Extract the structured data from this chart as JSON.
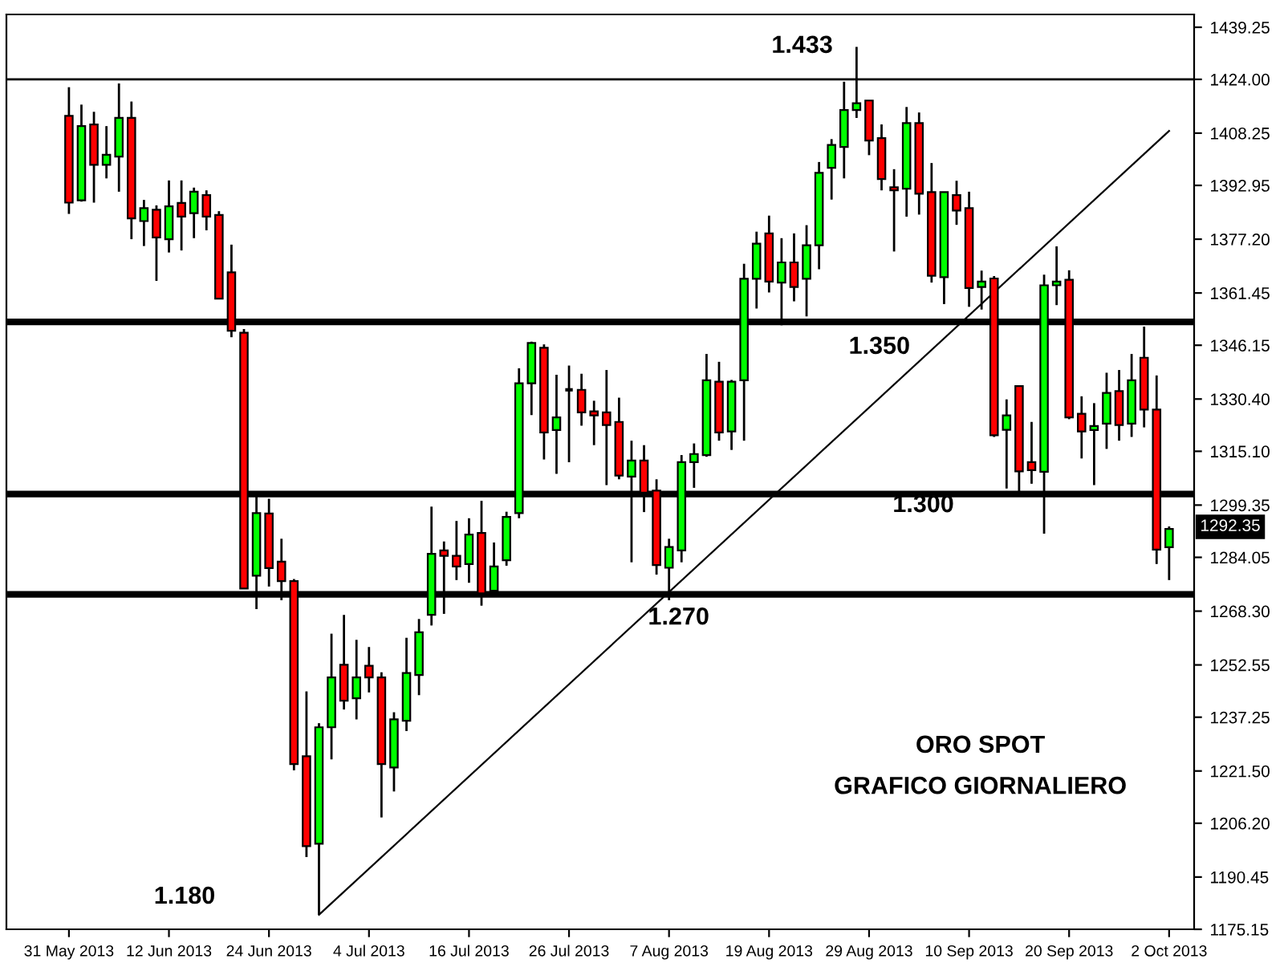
{
  "chart_data": {
    "type": "candlestick",
    "categories": [
      "31 May 2013",
      null,
      null,
      null,
      null,
      null,
      null,
      null,
      "12 Jun 2013",
      null,
      null,
      null,
      null,
      null,
      null,
      null,
      "24 Jun 2013",
      null,
      null,
      null,
      null,
      null,
      null,
      null,
      "4 Jul 2013",
      null,
      null,
      null,
      null,
      null,
      null,
      null,
      "16 Jul 2013",
      null,
      null,
      null,
      null,
      null,
      null,
      null,
      "26 Jul 2013",
      null,
      null,
      null,
      null,
      null,
      null,
      null,
      "7 Aug 2013",
      null,
      null,
      null,
      null,
      null,
      null,
      null,
      "19 Aug 2013",
      null,
      null,
      null,
      null,
      null,
      null,
      null,
      "29 Aug 2013",
      null,
      null,
      null,
      null,
      null,
      null,
      null,
      "10 Sep 2013",
      null,
      null,
      null,
      null,
      null,
      null,
      null,
      "20 Sep 2013",
      null,
      null,
      null,
      null,
      null,
      null,
      null,
      "2 Oct 2013"
    ],
    "ohlc": [
      [
        1413.3,
        1421.7,
        1384.6,
        1387.9
      ],
      [
        1388.6,
        1416.6,
        1388.2,
        1410.3
      ],
      [
        1410.8,
        1414.5,
        1387.9,
        1399.0
      ],
      [
        1399.0,
        1410.3,
        1395.0,
        1401.9
      ],
      [
        1401.4,
        1422.8,
        1391.1,
        1412.7
      ],
      [
        1412.7,
        1417.5,
        1377.2,
        1383.3
      ],
      [
        1382.5,
        1388.7,
        1375.2,
        1386.3
      ],
      [
        1385.8,
        1387.1,
        1365.0,
        1377.7
      ],
      [
        1377.2,
        1394.4,
        1373.3,
        1386.8
      ],
      [
        1387.8,
        1394.4,
        1373.9,
        1383.8
      ],
      [
        1384.8,
        1392.3,
        1377.5,
        1391.1
      ],
      [
        1390.1,
        1391.5,
        1379.8,
        1383.8
      ],
      [
        1384.3,
        1385.4,
        1359.8,
        1359.8
      ],
      [
        1367.5,
        1375.6,
        1348.5,
        1350.4
      ],
      [
        1349.8,
        1350.9,
        1274.9,
        1274.9
      ],
      [
        1278.7,
        1301.9,
        1268.9,
        1297.0
      ],
      [
        1296.9,
        1301.2,
        1275.5,
        1280.9
      ],
      [
        1282.8,
        1289.5,
        1271.5,
        1277.1
      ],
      [
        1277.1,
        1277.7,
        1221.7,
        1223.5
      ],
      [
        1225.8,
        1244.8,
        1196.3,
        1199.5
      ],
      [
        1200.2,
        1235.5,
        1179.4,
        1234.3
      ],
      [
        1234.3,
        1261.7,
        1224.9,
        1248.9
      ],
      [
        1252.6,
        1267.2,
        1239.5,
        1242.1
      ],
      [
        1242.8,
        1259.9,
        1236.6,
        1248.9
      ],
      [
        1252.3,
        1257.8,
        1244.5,
        1248.9
      ],
      [
        1248.9,
        1250.4,
        1207.9,
        1223.5
      ],
      [
        1222.5,
        1238.7,
        1215.5,
        1236.6
      ],
      [
        1236.2,
        1260.5,
        1233.2,
        1250.2
      ],
      [
        1249.6,
        1266.0,
        1243.7,
        1262.1
      ],
      [
        1267.2,
        1298.9,
        1264.1,
        1285.1
      ],
      [
        1286.1,
        1288.7,
        1267.5,
        1284.5
      ],
      [
        1284.5,
        1294.7,
        1277.4,
        1281.4
      ],
      [
        1282.1,
        1295.5,
        1276.6,
        1290.7
      ],
      [
        1291.2,
        1300.6,
        1269.9,
        1273.5
      ],
      [
        1274.3,
        1288.4,
        1272.7,
        1281.4
      ],
      [
        1283.2,
        1297.4,
        1281.6,
        1295.9
      ],
      [
        1297.0,
        1339.4,
        1295.5,
        1335.0
      ],
      [
        1335.0,
        1347.2,
        1325.7,
        1346.8
      ],
      [
        1345.4,
        1346.4,
        1312.7,
        1320.6
      ],
      [
        1321.3,
        1337.5,
        1308.5,
        1325.0
      ],
      [
        1333.1,
        1340.2,
        1311.9,
        1333.1
      ],
      [
        1333.1,
        1337.8,
        1322.6,
        1326.5
      ],
      [
        1326.8,
        1329.9,
        1316.9,
        1325.6
      ],
      [
        1326.5,
        1338.9,
        1305.2,
        1322.8
      ],
      [
        1323.7,
        1330.8,
        1306.9,
        1308.0
      ],
      [
        1307.7,
        1318.2,
        1282.6,
        1312.4
      ],
      [
        1312.4,
        1316.9,
        1297.3,
        1303.0
      ],
      [
        1303.6,
        1306.9,
        1279.0,
        1281.8
      ],
      [
        1281.0,
        1289.5,
        1271.5,
        1287.1
      ],
      [
        1286.1,
        1314.0,
        1282.6,
        1311.9
      ],
      [
        1311.9,
        1317.4,
        1304.4,
        1314.3
      ],
      [
        1314.0,
        1343.6,
        1313.5,
        1335.9
      ],
      [
        1335.5,
        1341.3,
        1318.2,
        1320.6
      ],
      [
        1320.9,
        1336.0,
        1315.5,
        1335.5
      ],
      [
        1335.9,
        1370.0,
        1318.2,
        1365.6
      ],
      [
        1365.6,
        1379.4,
        1356.9,
        1375.9
      ],
      [
        1378.9,
        1384.1,
        1361.6,
        1364.8
      ],
      [
        1364.5,
        1377.5,
        1352.0,
        1370.4
      ],
      [
        1370.4,
        1378.9,
        1359.0,
        1363.2
      ],
      [
        1365.6,
        1381.3,
        1354.6,
        1375.4
      ],
      [
        1375.4,
        1399.8,
        1368.4,
        1396.6
      ],
      [
        1398.1,
        1406.5,
        1388.8,
        1404.8
      ],
      [
        1404.2,
        1423.3,
        1395.0,
        1415.0
      ],
      [
        1415.0,
        1433.5,
        1412.7,
        1417.0
      ],
      [
        1417.8,
        1417.8,
        1401.8,
        1406.1
      ],
      [
        1406.8,
        1410.8,
        1391.5,
        1394.8
      ],
      [
        1392.4,
        1397.7,
        1373.6,
        1391.5
      ],
      [
        1392.0,
        1415.9,
        1383.8,
        1411.2
      ],
      [
        1411.2,
        1414.3,
        1384.4,
        1390.5
      ],
      [
        1391.0,
        1399.5,
        1364.5,
        1366.5
      ],
      [
        1366.1,
        1391.0,
        1358.2,
        1391.0
      ],
      [
        1390.1,
        1394.3,
        1381.4,
        1385.6
      ],
      [
        1386.3,
        1391.1,
        1357.4,
        1362.9
      ],
      [
        1363.2,
        1368.0,
        1356.6,
        1364.8
      ],
      [
        1365.7,
        1366.4,
        1319.3,
        1319.8
      ],
      [
        1321.4,
        1330.3,
        1304.2,
        1325.6
      ],
      [
        1334.2,
        1334.2,
        1302.8,
        1309.2
      ],
      [
        1311.9,
        1323.7,
        1305.6,
        1309.6
      ],
      [
        1309.1,
        1366.8,
        1291.0,
        1363.7
      ],
      [
        1363.7,
        1375.1,
        1357.9,
        1364.8
      ],
      [
        1365.3,
        1368.1,
        1324.5,
        1325.0
      ],
      [
        1326.1,
        1331.2,
        1313.0,
        1320.9
      ],
      [
        1321.3,
        1329.2,
        1305.2,
        1322.5
      ],
      [
        1323.2,
        1338.1,
        1315.8,
        1332.2
      ],
      [
        1332.7,
        1338.9,
        1318.2,
        1322.8
      ],
      [
        1323.2,
        1343.6,
        1319.3,
        1335.9
      ],
      [
        1342.5,
        1351.6,
        1322.1,
        1327.3
      ],
      [
        1327.3,
        1337.3,
        1282.1,
        1286.3
      ],
      [
        1287.0,
        1293.1,
        1277.4,
        1292.35
      ]
    ],
    "colors": [
      "#ff0000",
      "#00ff00",
      "#ff0000",
      "#00ff00",
      "#00ff00",
      "#ff0000",
      "#00ff00",
      "#ff0000",
      "#00ff00",
      "#ff0000",
      "#00ff00",
      "#ff0000",
      "#ff0000",
      "#ff0000",
      "#ff0000",
      "#00ff00",
      "#ff0000",
      "#ff0000",
      "#ff0000",
      "#ff0000",
      "#00ff00",
      "#00ff00",
      "#ff0000",
      "#00ff00",
      "#ff0000",
      "#ff0000",
      "#00ff00",
      "#00ff00",
      "#00ff00",
      "#00ff00",
      "#ff0000",
      "#ff0000",
      "#00ff00",
      "#ff0000",
      "#00ff00",
      "#00ff00",
      "#00ff00",
      "#00ff00",
      "#ff0000",
      "#00ff00",
      "#000000",
      "#ff0000",
      "#ff0000",
      "#ff0000",
      "#ff0000",
      "#00ff00",
      "#ff0000",
      "#ff0000",
      "#00ff00",
      "#00ff00",
      "#00ff00",
      "#00ff00",
      "#ff0000",
      "#00ff00",
      "#00ff00",
      "#00ff00",
      "#ff0000",
      "#00ff00",
      "#ff0000",
      "#00ff00",
      "#00ff00",
      "#00ff00",
      "#00ff00",
      "#00ff00",
      "#ff0000",
      "#ff0000",
      "#ff0000",
      "#00ff00",
      "#ff0000",
      "#ff0000",
      "#00ff00",
      "#ff0000",
      "#ff0000",
      "#00ff00",
      "#ff0000",
      "#00ff00",
      "#ff0000",
      "#ff0000",
      "#00ff00",
      "#00ff00",
      "#ff0000",
      "#ff0000",
      "#00ff00",
      "#00ff00",
      "#ff0000",
      "#00ff00",
      "#ff0000",
      "#ff0000",
      "#00ff00"
    ],
    "series": [
      {
        "type": "line",
        "values": [
          null,
          null,
          null,
          null,
          null,
          null,
          null,
          null,
          null,
          null,
          null,
          null,
          null,
          null,
          null,
          null,
          null,
          null,
          null,
          null,
          1179.4,
          null,
          null,
          null,
          null,
          null,
          null,
          null,
          null,
          null,
          null,
          null,
          null,
          null,
          null,
          null,
          null,
          null,
          null,
          null,
          null,
          null,
          null,
          null,
          null,
          null,
          null,
          null,
          null,
          null,
          null,
          null,
          null,
          null,
          null,
          null,
          null,
          null,
          null,
          null,
          null,
          null,
          null,
          null,
          null,
          null,
          null,
          null,
          null,
          null,
          null,
          null,
          null,
          null,
          null,
          null,
          null,
          null,
          null,
          null,
          null,
          null,
          null,
          null,
          null,
          null,
          null,
          null,
          1408.9
        ],
        "color": "#000000"
      }
    ],
    "ylim": [
      1175.15,
      1443
    ],
    "yticks": [
      1175.15,
      1190.45,
      {
        "value": 1206.2,
        "label": "1206.20"
      },
      {
        "value": 1221.5,
        "label": "1221.50"
      },
      1237.25,
      1252.55,
      {
        "value": 1268.3,
        "label": "1268.30"
      },
      1284.05,
      1299.35,
      {
        "value": 1315.1,
        "label": "1315.10"
      },
      {
        "value": 1330.4,
        "label": "1330.40"
      },
      1346.15,
      1361.45,
      {
        "value": 1377.2,
        "label": "1377.20"
      },
      1392.95,
      1408.25,
      {
        "value": 1424.0,
        "label": "1424.00"
      },
      1439.25
    ],
    "ref_lines": [
      {
        "axis": "y",
        "value": 1424.0,
        "color": "#000000"
      },
      {
        "axis": "y",
        "value": 1353.0,
        "color": "#000000"
      },
      {
        "axis": "y",
        "value": 1302.6,
        "color": "#000000"
      },
      {
        "axis": "y",
        "value": 1273.2,
        "color": "#000000"
      }
    ],
    "annotations": [
      "1.433",
      "1.180",
      "1292.35",
      "1.350",
      "1.300",
      "1.270",
      "ORO SPOT",
      "GRAFICO GIORNALIERO"
    ],
    "grid": false
  }
}
